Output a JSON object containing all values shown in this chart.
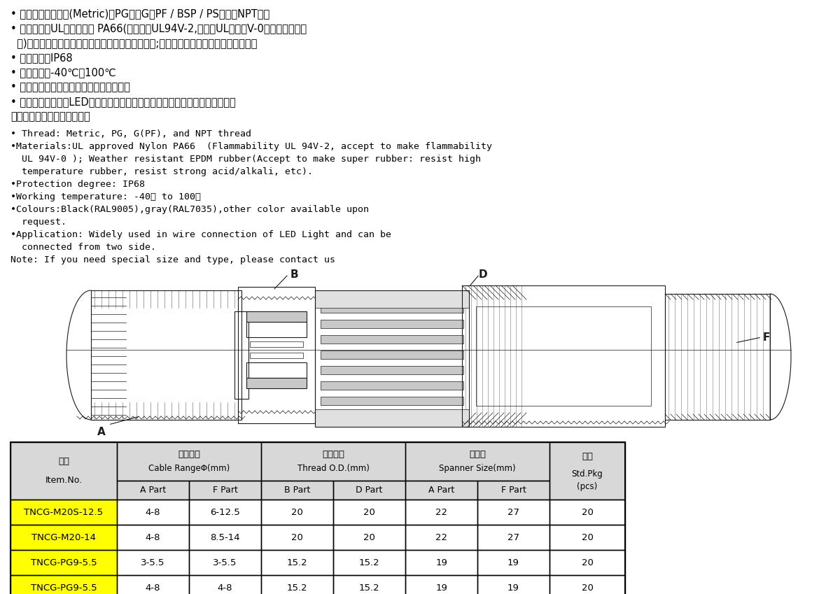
{
  "bg_color": "#ffffff",
  "chinese_lines": [
    [
      "• 螺牙规格：公制牙(Metric)、PG牙、G（PF / BSP / PS）牙、NPT牙。",
      false
    ],
    [
      "• 产品材质：UL认可之尼龙 PA66(防火等级UL94V-2,可定制UL认可的V-0防火等级尼龙原",
      false
    ],
    [
      "  料)；三元乙丙耗候橡胶（可定制耐寒、耐高温橡胶;耐高酸碷、耐化学与抗腐蚀橡胶）。",
      false
    ],
    [
      "• 保护等级：IP68",
      false
    ],
    [
      "• 工作温度：-40℃至100℃",
      false
    ],
    [
      "• 颜色种类：黑色、灰色，其他颜色可定做",
      false
    ],
    [
      "• 应用：广泛应用于LED灯线路组合，能够从两端进行连接并提供灯具设计方案",
      false
    ],
    [
      "注：特殊规格需要请联系工厂",
      false
    ]
  ],
  "english_lines": [
    "• Thread: Metric, PG, G(PF), and NPT thread",
    "•Materials:UL approved Nylon PA66  (Flammability UL 94V-2, accept to make flammability",
    "  UL 94V-0 ); Weather resistant EPDM rubber(Accept to make super rubber: resist high",
    "  temperature rubber, resist strong acid/alkali, etc).",
    "•Protection degree: IP68",
    "•Working temperature: -40℃ to 100℃",
    "•Colours:Black(RAL9005),gray(RAL7035),other color available upon",
    "  request.",
    "•Application: Widely used in wire connection of LED Light and can be",
    "  connected from two side.",
    "Note: If you need special size and type, please contact us"
  ],
  "table_data": [
    [
      "TNCG-M20S-12.5",
      "4-8",
      "6-12.5",
      "20",
      "20",
      "22",
      "27",
      "20"
    ],
    [
      "TNCG-M20-14",
      "4-8",
      "8.5-14",
      "20",
      "20",
      "22",
      "27",
      "20"
    ],
    [
      "TNCG-PG9-5.5",
      "3-5.5",
      "3-5.5",
      "15.2",
      "15.2",
      "19",
      "19",
      "20"
    ],
    [
      "TNCG-PG9-5.5",
      "4-8",
      "4-8",
      "15.2",
      "15.2",
      "19",
      "19",
      "20"
    ]
  ],
  "row_highlight_color": "#ffff00",
  "table_border_color": "#000000",
  "header_bg_color": "#d8d8d8",
  "text_color": "#000000"
}
